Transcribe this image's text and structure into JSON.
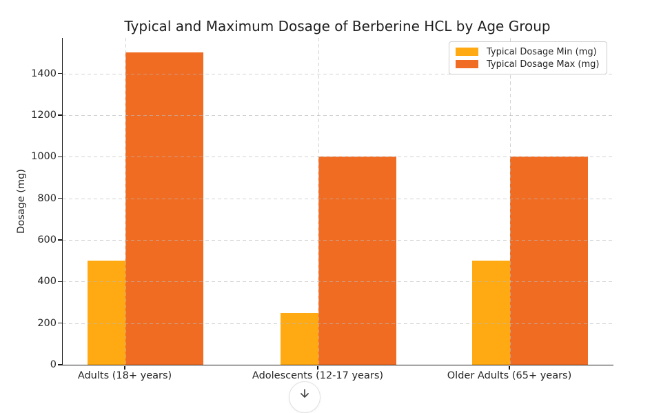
{
  "chart_data": {
    "type": "bar",
    "title": "Typical and Maximum Dosage of Berberine HCL by Age Group",
    "xlabel": "",
    "ylabel": "Dosage (mg)",
    "categories": [
      "Adults (18+ years)",
      "Adolescents (12-17 years)",
      "Older Adults (65+ years)"
    ],
    "series": [
      {
        "name": "Typical Dosage Min (mg)",
        "color": "#FFA913",
        "values": [
          500,
          250,
          500
        ]
      },
      {
        "name": "Typical Dosage Max (mg)",
        "color": "#F16C23",
        "values": [
          1500,
          1000,
          1000
        ]
      }
    ],
    "yticks": [
      0,
      200,
      400,
      600,
      800,
      1000,
      1200,
      1400
    ],
    "ylim": [
      0,
      1571
    ],
    "grid": true,
    "grid_style": "dashed",
    "grid_color": "#d6d6d6",
    "legend_position": "upper right",
    "axis_color": "#1a1a1a"
  },
  "overlay": {
    "scroll_button_icon": "arrow-down"
  }
}
